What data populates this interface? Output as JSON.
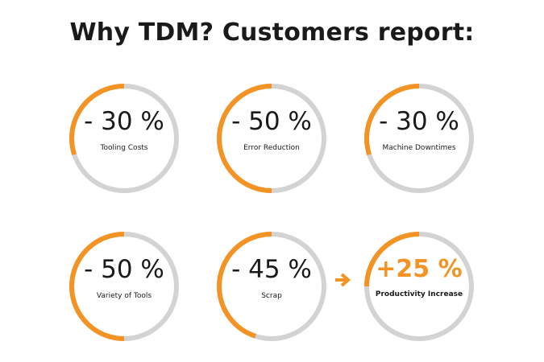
{
  "title": "Why TDM? Customers report:",
  "colors": {
    "accent": "#f39324",
    "track": "#d3d3d3",
    "text": "#1a1a1a"
  },
  "stats": [
    {
      "value": "- 30 %",
      "label": "Tooling Costs",
      "fraction": 0.3
    },
    {
      "value": "- 50 %",
      "label": "Error Reduction",
      "fraction": 0.5
    },
    {
      "value": "- 30 %",
      "label": "Machine Downtimes",
      "fraction": 0.3
    },
    {
      "value": "- 50 %",
      "label": "Variety of Tools",
      "fraction": 0.5
    },
    {
      "value": "- 45 %",
      "label": "Scrap",
      "fraction": 0.45
    },
    {
      "value": "+25 %",
      "label": "Productivity Increase",
      "fraction": 0.25
    }
  ],
  "icons": {
    "arrow": "arrow-right-icon"
  }
}
